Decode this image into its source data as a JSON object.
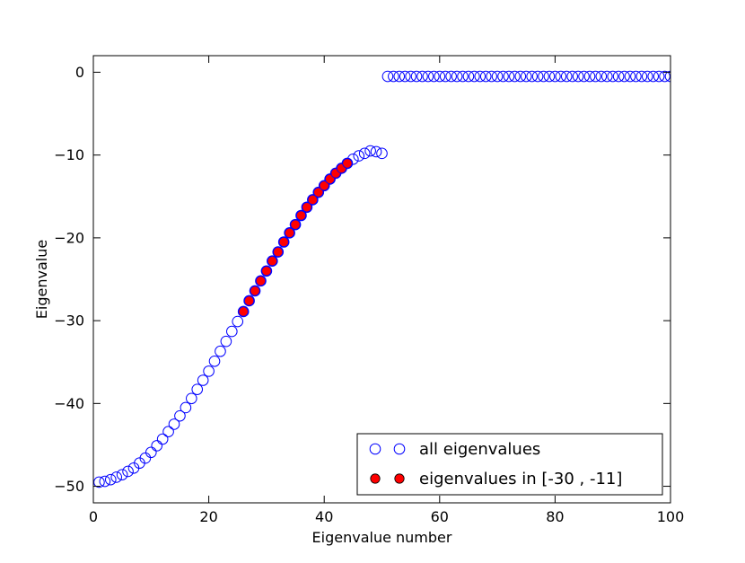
{
  "chart_data": {
    "type": "scatter",
    "title": "",
    "xlabel": "Eigenvalue number",
    "ylabel": "Eigenvalue",
    "xlim": [
      0,
      100
    ],
    "ylim": [
      -52,
      2
    ],
    "xticks": [
      0,
      20,
      40,
      60,
      80,
      100
    ],
    "xtick_labels": [
      "0",
      "20",
      "40",
      "60",
      "80",
      "100"
    ],
    "yticks": [
      0,
      -10,
      -20,
      -30,
      -40,
      -50
    ],
    "ytick_labels": [
      "0",
      "−10",
      "−20",
      "−30",
      "−40",
      "−50"
    ],
    "grid": false,
    "legend_position": "bottom-right",
    "series": [
      {
        "name": "all eigenvalues",
        "marker": "open-circle",
        "color": "#0000ff",
        "x": [
          1,
          2,
          3,
          4,
          5,
          6,
          7,
          8,
          9,
          10,
          11,
          12,
          13,
          14,
          15,
          16,
          17,
          18,
          19,
          20,
          21,
          22,
          23,
          24,
          25,
          26,
          27,
          28,
          29,
          30,
          31,
          32,
          33,
          34,
          35,
          36,
          37,
          38,
          39,
          40,
          41,
          42,
          43,
          44,
          45,
          46,
          47,
          48,
          49,
          50,
          51,
          52,
          53,
          54,
          55,
          56,
          57,
          58,
          59,
          60,
          61,
          62,
          63,
          64,
          65,
          66,
          67,
          68,
          69,
          70,
          71,
          72,
          73,
          74,
          75,
          76,
          77,
          78,
          79,
          80,
          81,
          82,
          83,
          84,
          85,
          86,
          87,
          88,
          89,
          90,
          91,
          92,
          93,
          94,
          95,
          96,
          97,
          98,
          99,
          100
        ],
        "y": [
          -49.5,
          -49.4,
          -49.2,
          -48.9,
          -48.6,
          -48.2,
          -47.8,
          -47.2,
          -46.6,
          -45.9,
          -45.1,
          -44.3,
          -43.4,
          -42.5,
          -41.5,
          -40.5,
          -39.4,
          -38.3,
          -37.2,
          -36.1,
          -34.9,
          -33.7,
          -32.5,
          -31.3,
          -30.1,
          -28.9,
          -27.6,
          -26.4,
          -25.2,
          -24.0,
          -22.8,
          -21.7,
          -20.5,
          -19.4,
          -18.4,
          -17.3,
          -16.3,
          -15.4,
          -14.5,
          -13.7,
          -12.9,
          -12.2,
          -11.6,
          -11.0,
          -10.5,
          -10.1,
          -9.8,
          -9.5,
          -9.6,
          -9.8,
          -0.5,
          -0.5,
          -0.5,
          -0.5,
          -0.5,
          -0.5,
          -0.5,
          -0.5,
          -0.5,
          -0.5,
          -0.5,
          -0.5,
          -0.5,
          -0.5,
          -0.5,
          -0.5,
          -0.5,
          -0.5,
          -0.5,
          -0.5,
          -0.5,
          -0.5,
          -0.5,
          -0.5,
          -0.5,
          -0.5,
          -0.5,
          -0.5,
          -0.5,
          -0.5,
          -0.5,
          -0.5,
          -0.5,
          -0.5,
          -0.5,
          -0.5,
          -0.5,
          -0.5,
          -0.5,
          -0.5,
          -0.5,
          -0.5,
          -0.5,
          -0.5,
          -0.5,
          -0.5,
          -0.5,
          -0.5,
          -0.5,
          -0.5
        ]
      },
      {
        "name": "eigenvalues in [-30 , -11]",
        "marker": "filled-circle",
        "color": "#ff0000",
        "edge_color": "#0000ff",
        "x": [
          26,
          27,
          28,
          29,
          30,
          31,
          32,
          33,
          34,
          35,
          36,
          37,
          38,
          39,
          40,
          41,
          42,
          43,
          44
        ],
        "y": [
          -28.9,
          -27.6,
          -26.4,
          -25.2,
          -24.0,
          -22.8,
          -21.7,
          -20.5,
          -19.4,
          -18.4,
          -17.3,
          -16.3,
          -15.4,
          -14.5,
          -13.7,
          -12.9,
          -12.2,
          -11.6,
          -11.0
        ]
      }
    ]
  }
}
